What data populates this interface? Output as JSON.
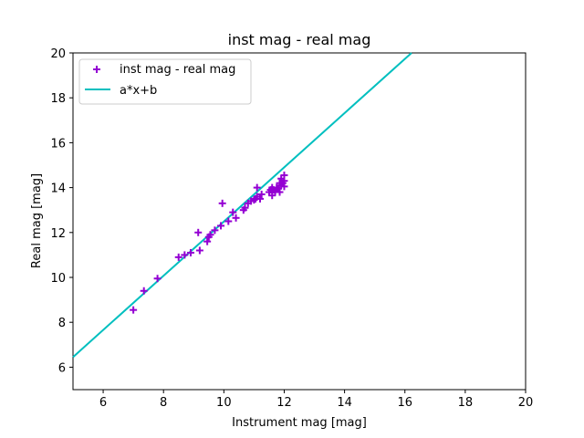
{
  "chart_data": {
    "type": "scatter",
    "title": "inst mag - real mag",
    "xlabel": "Instrument mag [mag]",
    "ylabel": "Real mag [mag]",
    "xlim": [
      5,
      20
    ],
    "ylim": [
      5,
      20
    ],
    "xticks": [
      6,
      8,
      10,
      12,
      14,
      16,
      18,
      20
    ],
    "yticks": [
      6,
      8,
      10,
      12,
      14,
      16,
      18,
      20
    ],
    "grid": false,
    "legend_position": "top-left",
    "series": [
      {
        "name": "inst mag - real mag",
        "kind": "scatter",
        "marker": "+",
        "color": "#9400d3",
        "points": [
          [
            7.0,
            8.55
          ],
          [
            7.35,
            9.4
          ],
          [
            7.8,
            9.95
          ],
          [
            8.5,
            10.9
          ],
          [
            8.7,
            11.0
          ],
          [
            8.9,
            11.1
          ],
          [
            9.15,
            12.0
          ],
          [
            9.2,
            11.2
          ],
          [
            9.45,
            11.6
          ],
          [
            9.5,
            11.8
          ],
          [
            9.55,
            11.9
          ],
          [
            9.7,
            12.1
          ],
          [
            9.9,
            12.3
          ],
          [
            9.95,
            13.3
          ],
          [
            10.15,
            12.5
          ],
          [
            10.3,
            12.9
          ],
          [
            10.4,
            12.65
          ],
          [
            10.65,
            13.0
          ],
          [
            10.7,
            13.1
          ],
          [
            10.8,
            13.3
          ],
          [
            10.9,
            13.4
          ],
          [
            11.0,
            13.45
          ],
          [
            11.05,
            13.5
          ],
          [
            11.1,
            13.6
          ],
          [
            11.1,
            14.0
          ],
          [
            11.2,
            13.5
          ],
          [
            11.25,
            13.7
          ],
          [
            11.5,
            13.8
          ],
          [
            11.55,
            13.9
          ],
          [
            11.6,
            13.65
          ],
          [
            11.6,
            14.0
          ],
          [
            11.7,
            13.8
          ],
          [
            11.75,
            14.0
          ],
          [
            11.8,
            13.95
          ],
          [
            11.85,
            13.8
          ],
          [
            11.9,
            14.1
          ],
          [
            11.9,
            14.4
          ],
          [
            11.95,
            14.2
          ],
          [
            12.0,
            14.55
          ],
          [
            12.0,
            14.3
          ],
          [
            12.0,
            14.05
          ],
          [
            11.65,
            13.9
          ],
          [
            11.85,
            14.2
          ]
        ]
      },
      {
        "name": "a*x+b",
        "kind": "line",
        "color": "#00bfbf",
        "points": [
          [
            5,
            6.45
          ],
          [
            16.22,
            20
          ]
        ]
      }
    ]
  }
}
